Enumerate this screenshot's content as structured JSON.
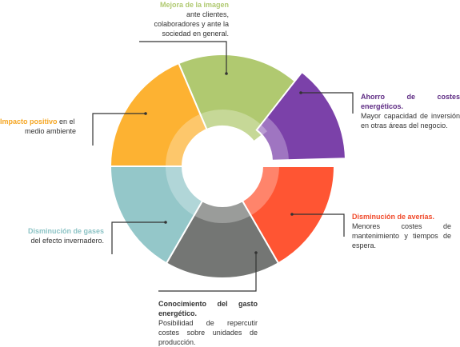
{
  "segments": [
    {
      "key": "imagen",
      "color": "#b0c970",
      "title": "Mejora de la imagen",
      "lines": [
        "ante clientes,",
        "colaboradores y ante la",
        "sociedad en general."
      ]
    },
    {
      "key": "ahorro",
      "color": "#7b41a9",
      "title": "Ahorro de costes energéticos.",
      "desc": "Mayor capacidad de inversión en otras áreas del negocio."
    },
    {
      "key": "averias",
      "color": "#ff5533",
      "title": "Disminución de averías.",
      "desc": "Menores costes de mantenimiento y tiempos de espera."
    },
    {
      "key": "conocimiento",
      "color": "#747674",
      "title": "Conocimiento del gasto energético.",
      "desc": "Posibilidad de repercutir costes sobre unidades de producción."
    },
    {
      "key": "gases",
      "color": "#94c7c9",
      "title": "Disminución de gases",
      "rest": "del efecto invernadero."
    },
    {
      "key": "impacto",
      "color": "#fdb232",
      "title": "Impacto positivo",
      "rest_inline": " en el",
      "rest_line2": "medio ambiente"
    }
  ]
}
